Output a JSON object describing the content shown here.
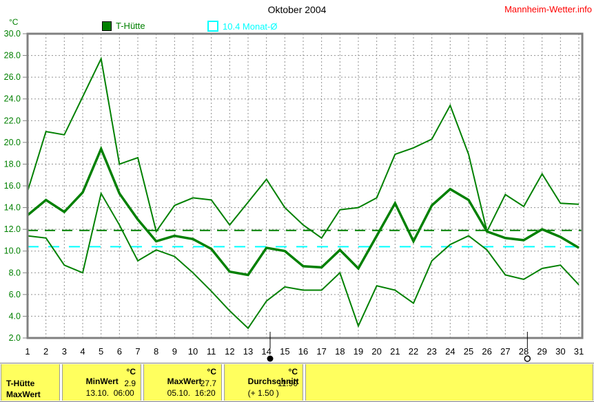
{
  "header": {
    "title": "Oktober 2004",
    "site_link": "Mannheim-Wetter.info"
  },
  "axis": {
    "unit": "°C"
  },
  "legend": {
    "series1_label": "T-Hütte",
    "series2_label": "10.4 Monat-Ø"
  },
  "colors": {
    "green": "#008000",
    "cyan": "#00FFFF",
    "grid": "#909090",
    "frame": "#808080",
    "red": "#FF0000",
    "yellow": "#FFFF5E"
  },
  "chart_data": {
    "type": "line",
    "title": "Oktober 2004",
    "xlabel": "",
    "ylabel": "°C",
    "ylim": [
      2,
      30
    ],
    "grid": true,
    "legend_position": "top",
    "x": [
      1,
      2,
      3,
      4,
      5,
      6,
      7,
      8,
      9,
      10,
      11,
      12,
      13,
      14,
      15,
      16,
      17,
      18,
      19,
      20,
      21,
      22,
      23,
      24,
      25,
      26,
      27,
      28,
      29,
      30,
      31
    ],
    "x_ticks": [
      "1",
      "2",
      "3",
      "4",
      "5",
      "6",
      "7",
      "8",
      "9",
      "10",
      "11",
      "12",
      "13",
      "14",
      "15",
      "16",
      "17",
      "18",
      "19",
      "20",
      "21",
      "22",
      "23",
      "24",
      "25",
      "26",
      "27",
      "28",
      "29",
      "30",
      "31"
    ],
    "y_ticks": [
      "30.0",
      "28.0",
      "26.0",
      "24.0",
      "22.0",
      "20.0",
      "18.0",
      "16.0",
      "14.0",
      "12.0",
      "10.0",
      "8.0",
      "6.0",
      "4.0",
      "2.0"
    ],
    "series": [
      {
        "name": "T-Hütte Tagesmaximum",
        "color": "#008000",
        "width": 2,
        "values": [
          15.5,
          21.0,
          20.7,
          24.2,
          27.7,
          18.0,
          18.6,
          11.8,
          14.2,
          14.9,
          14.7,
          12.4,
          14.5,
          16.6,
          14.0,
          12.4,
          11.2,
          13.8,
          14.0,
          14.9,
          18.9,
          19.5,
          20.3,
          23.4,
          18.9,
          11.8,
          15.2,
          14.1,
          17.1,
          14.4,
          14.3
        ]
      },
      {
        "name": "T-Hütte Tagesmittel",
        "color": "#008000",
        "width": 3.5,
        "values": [
          13.3,
          14.7,
          13.6,
          15.4,
          19.4,
          15.3,
          12.9,
          10.9,
          11.4,
          11.1,
          10.2,
          8.1,
          7.8,
          10.3,
          10.0,
          8.6,
          8.5,
          10.1,
          8.4,
          11.4,
          14.4,
          10.9,
          14.2,
          15.7,
          14.7,
          11.8,
          11.2,
          11.0,
          12.0,
          11.3,
          10.3
        ]
      },
      {
        "name": "T-Hütte Tagesminimum",
        "color": "#008000",
        "width": 2,
        "values": [
          11.4,
          11.2,
          8.7,
          8.0,
          15.3,
          12.4,
          9.1,
          10.1,
          9.5,
          8.0,
          6.3,
          4.5,
          2.9,
          5.4,
          6.7,
          6.4,
          6.4,
          8.0,
          3.1,
          6.8,
          6.4,
          5.2,
          9.1,
          10.6,
          11.4,
          10.1,
          7.8,
          7.4,
          8.4,
          8.7,
          6.9
        ]
      }
    ],
    "reference_lines": [
      {
        "name": "Durchschnitt",
        "value": 11.9,
        "color": "#008000",
        "dash": "15 10",
        "width": 2
      },
      {
        "name": "Monat-Ø",
        "value": 10.4,
        "color": "#00FFFF",
        "dash": "16 14",
        "width": 2
      }
    ],
    "moon_markers": [
      {
        "day": 14.2,
        "phase": "new-moon"
      },
      {
        "day": 28.2,
        "phase": "full-moon"
      }
    ]
  },
  "stats_table": {
    "row_label_line1": "T-Hütte",
    "row_label_line2": "MaxWert",
    "columns": [
      {
        "header": "MinWert",
        "unit": "°C",
        "detail": "13.10.  06:00",
        "value": "2.9"
      },
      {
        "header": "MaxWert",
        "unit": "°C",
        "detail": "05.10.  16:20",
        "value": "27.7"
      },
      {
        "header": "Durchschnitt",
        "unit": "°C",
        "detail": "(+ 1.50 )",
        "value": "11.90"
      }
    ]
  }
}
